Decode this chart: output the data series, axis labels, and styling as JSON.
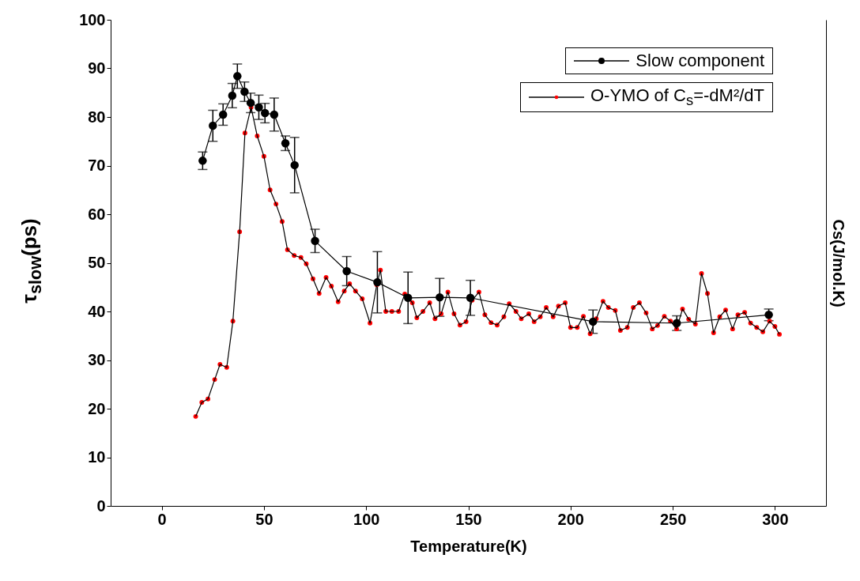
{
  "chart_data": {
    "type": "line",
    "xlabel": "Temperature(K)",
    "ylabel": "τ$_{slow}$(ps)",
    "y2label": "Cs(J/mol.K)",
    "xlim": [
      -25,
      325
    ],
    "ylim": [
      0,
      100
    ],
    "xticks": [
      0,
      50,
      100,
      150,
      200,
      250,
      300
    ],
    "yticks": [
      0,
      10,
      20,
      30,
      40,
      50,
      60,
      70,
      80,
      90,
      100
    ],
    "grid": false,
    "legend": "top right",
    "marker": "circle",
    "line_style": "solid",
    "series": [
      {
        "name": "Slow component",
        "color": "#000000",
        "x": [
          20,
          25,
          30,
          34.5,
          37,
          40.5,
          43.5,
          47.5,
          50.5,
          55,
          60.5,
          65,
          75,
          90.5,
          105.5,
          120.5,
          136,
          151,
          211,
          252,
          297
        ],
        "values": [
          71,
          78.2,
          80.5,
          84.4,
          88.4,
          85.2,
          82.9,
          82,
          80.8,
          80.5,
          74.6,
          70.1,
          54.5,
          48.3,
          46,
          42.8,
          42.9,
          42.8,
          37.9,
          37.6,
          39.3
        ],
        "errors": [
          1.8,
          3.2,
          2.2,
          2.5,
          2.5,
          2,
          2,
          2.5,
          2,
          3.4,
          1.5,
          5.7,
          2.4,
          3,
          6.3,
          5.3,
          3.9,
          3.6,
          2.4,
          1.5,
          1.2
        ]
      },
      {
        "name": "O-YMO of  C$_{s}$=-dM²/dT",
        "color": "#ff0000",
        "x": [
          16.6,
          19.6,
          22.6,
          25.9,
          28.5,
          31.8,
          34.8,
          38.1,
          40.7,
          43.7,
          46.7,
          50,
          53,
          55.9,
          58.9,
          61.5,
          64.8,
          68.1,
          70.7,
          74,
          77,
          80.4,
          83,
          86.3,
          89.3,
          91.9,
          94.8,
          98.1,
          101.9,
          105.2,
          107,
          109.6,
          112.6,
          115.9,
          118.9,
          122.6,
          124.8,
          127.8,
          131.1,
          133.7,
          136.7,
          140,
          143,
          145.9,
          148.9,
          151.9,
          155.2,
          158.1,
          161.1,
          164.1,
          167.4,
          170,
          173.3,
          175.9,
          179.6,
          182.2,
          185.2,
          188.1,
          191.5,
          194.1,
          197.4,
          200,
          203.3,
          206.3,
          209.6,
          212.6,
          215.9,
          218.5,
          221.9,
          224.4,
          227.8,
          230.7,
          233.7,
          237,
          240,
          242.6,
          245.9,
          248.9,
          251.9,
          254.8,
          257.8,
          261.1,
          264.1,
          267,
          270,
          273,
          275.9,
          279.3,
          281.9,
          285.2,
          288.1,
          291.1,
          294.1,
          297.4,
          300,
          302.2
        ],
        "values": [
          18.4,
          21.3,
          22,
          26,
          29.1,
          28.5,
          38,
          56.4,
          76.7,
          82,
          76.1,
          71.9,
          65,
          62.1,
          58.5,
          52.7,
          51.5,
          51.1,
          49.8,
          46.7,
          43.7,
          47,
          45.2,
          42,
          44.2,
          45.7,
          44.2,
          42.6,
          37.6,
          45.5,
          48.5,
          40,
          40,
          40,
          43.6,
          41.8,
          38.7,
          40,
          41.8,
          38.5,
          39.5,
          44,
          39.5,
          37.2,
          37.9,
          42.3,
          44,
          39.3,
          37.7,
          37.2,
          38.9,
          41.6,
          40,
          38.5,
          39.5,
          37.9,
          38.9,
          40.8,
          38.9,
          41.1,
          41.8,
          36.7,
          36.7,
          39,
          35.4,
          38.5,
          42.1,
          40.8,
          40.2,
          36.1,
          36.7,
          40.8,
          41.8,
          39.7,
          36.4,
          37.1,
          39,
          38,
          36.4,
          40.5,
          38.4,
          37.4,
          47.8,
          43.7,
          35.6,
          38.9,
          40.3,
          36.4,
          39.3,
          39.8,
          37.6,
          36.7,
          35.8,
          38,
          36.9,
          35.3
        ]
      }
    ]
  }
}
